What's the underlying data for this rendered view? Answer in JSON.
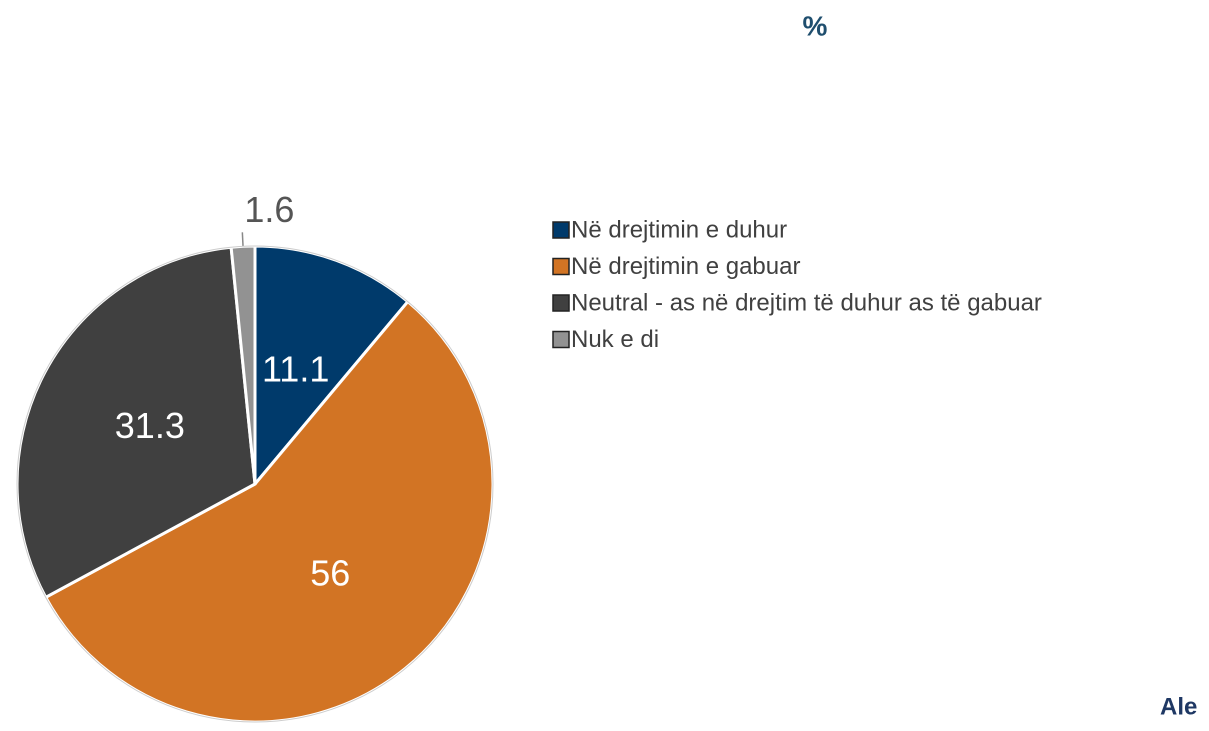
{
  "chart_data": {
    "type": "pie",
    "title": "%",
    "categories": [
      "Në drejtimin e duhur",
      "Në drejtimin e gabuar",
      "Neutral - as në drejtim të duhur as të gabuar",
      "Nuk e di"
    ],
    "values": [
      11.1,
      56,
      31.3,
      1.6
    ],
    "colors": [
      "#003a6b",
      "#d27424",
      "#404040",
      "#929292"
    ],
    "legend": "right",
    "annotations": [
      "Ale"
    ]
  }
}
